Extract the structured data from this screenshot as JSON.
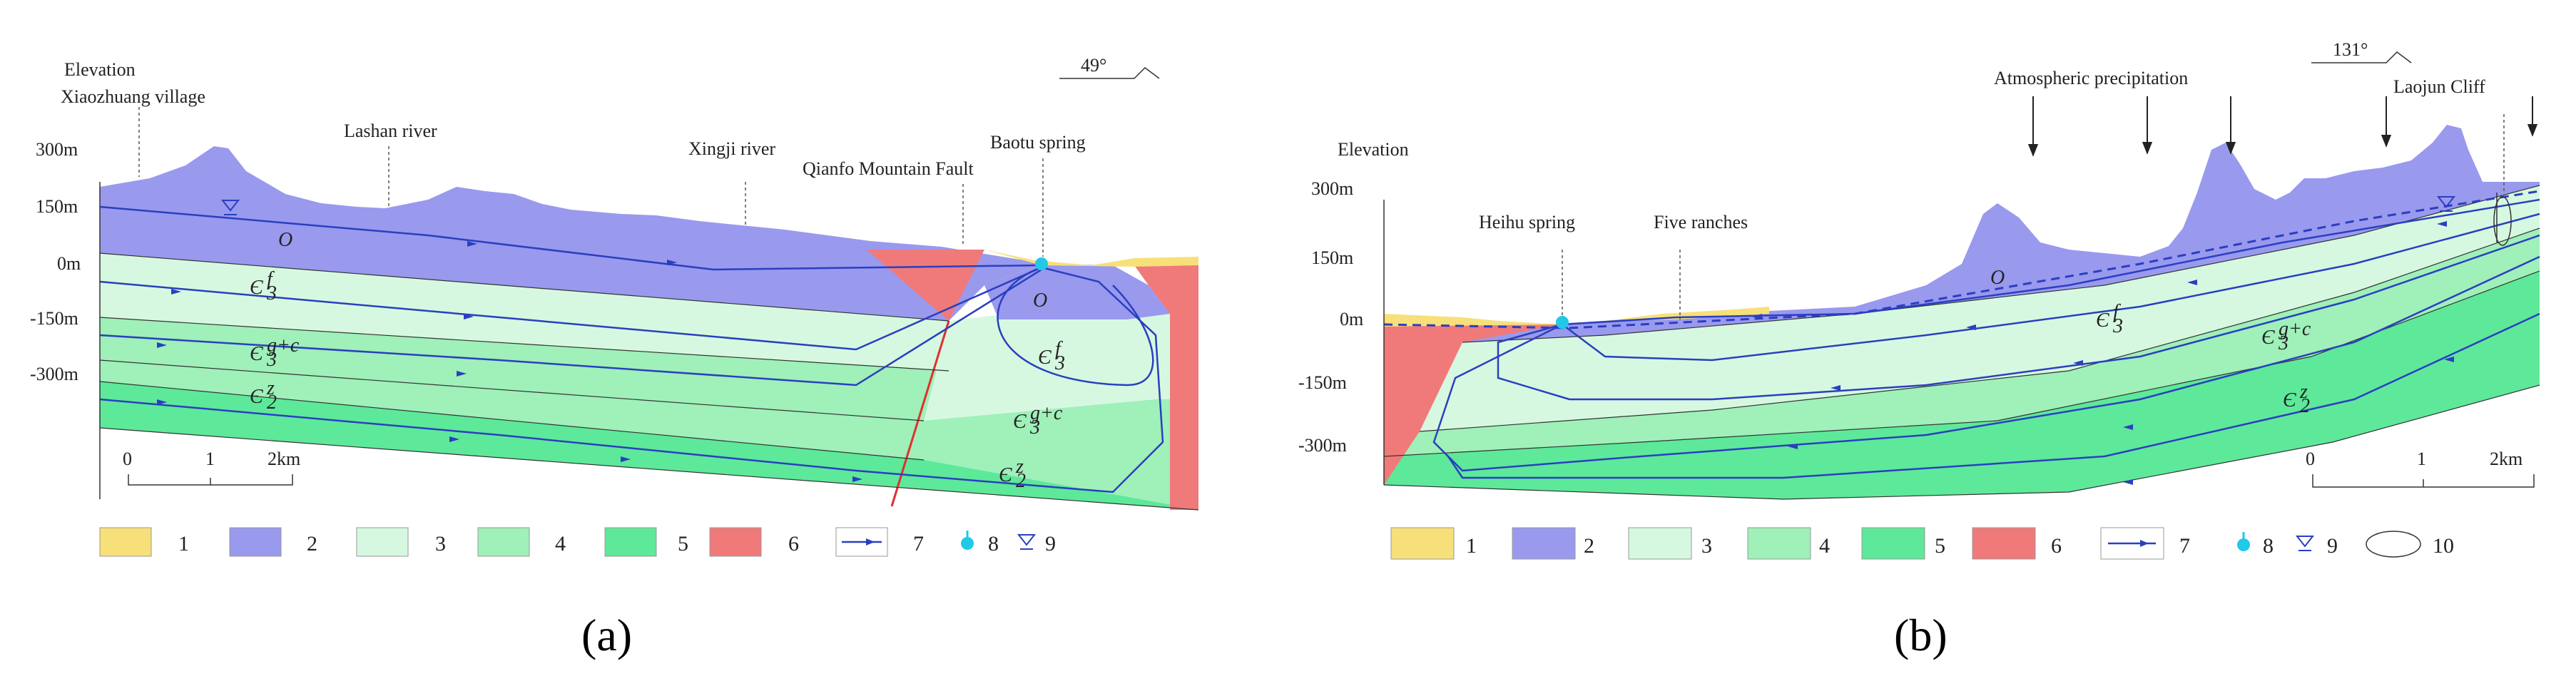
{
  "panel_a": {
    "caption": "(a)",
    "azimuth": "49°",
    "elevation_title": "Elevation",
    "axis_ticks": [
      "300m",
      "150m",
      "0m",
      "-150m",
      "-300m"
    ],
    "places": {
      "village": "Xiaozhuang village",
      "lashan": "Lashan river",
      "xingji": "Xingji river",
      "fault": "Qianfo Mountain Fault",
      "spring": "Baotu spring"
    },
    "layers": {
      "o": "O",
      "c3f": "Є",
      "c3gc": "Є",
      "c2z": "Є"
    },
    "layer_subsup": {
      "f_sup": "f",
      "gc_sup": "g+c",
      "z_sup": "z",
      "sub3": "3",
      "sub2": "2"
    },
    "scale": {
      "t0": "0",
      "t1": "1",
      "t2": "2km"
    },
    "legend": [
      "1",
      "2",
      "3",
      "4",
      "5",
      "6",
      "7",
      "8",
      "9"
    ]
  },
  "panel_b": {
    "caption": "(b)",
    "azimuth": "131°",
    "elevation_title": "Elevation",
    "axis_ticks": [
      "300m",
      "150m",
      "0m",
      "-150m",
      "-300m"
    ],
    "places": {
      "precip": "Atmospheric precipitation",
      "laojun": "Laojun Cliff",
      "heihu": "Heihu spring",
      "ranches": "Five ranches"
    },
    "layers": {
      "o": "O",
      "c3f": "Є",
      "c3gc": "Є",
      "c2z": "Є"
    },
    "scale": {
      "t0": "0",
      "t1": "1",
      "t2": "2km"
    },
    "legend": [
      "1",
      "2",
      "3",
      "4",
      "5",
      "6",
      "7",
      "8",
      "9",
      "10"
    ]
  },
  "colors": {
    "quaternary": "#f7e07a",
    "ordovician": "#9999ee",
    "c3f": "#d6f8e0",
    "c3gc": "#9ff0b9",
    "c2z": "#5ee89a",
    "intrusive": "#f07a7a",
    "flow": "#2a3fc0",
    "spring": "#22c8e8"
  }
}
